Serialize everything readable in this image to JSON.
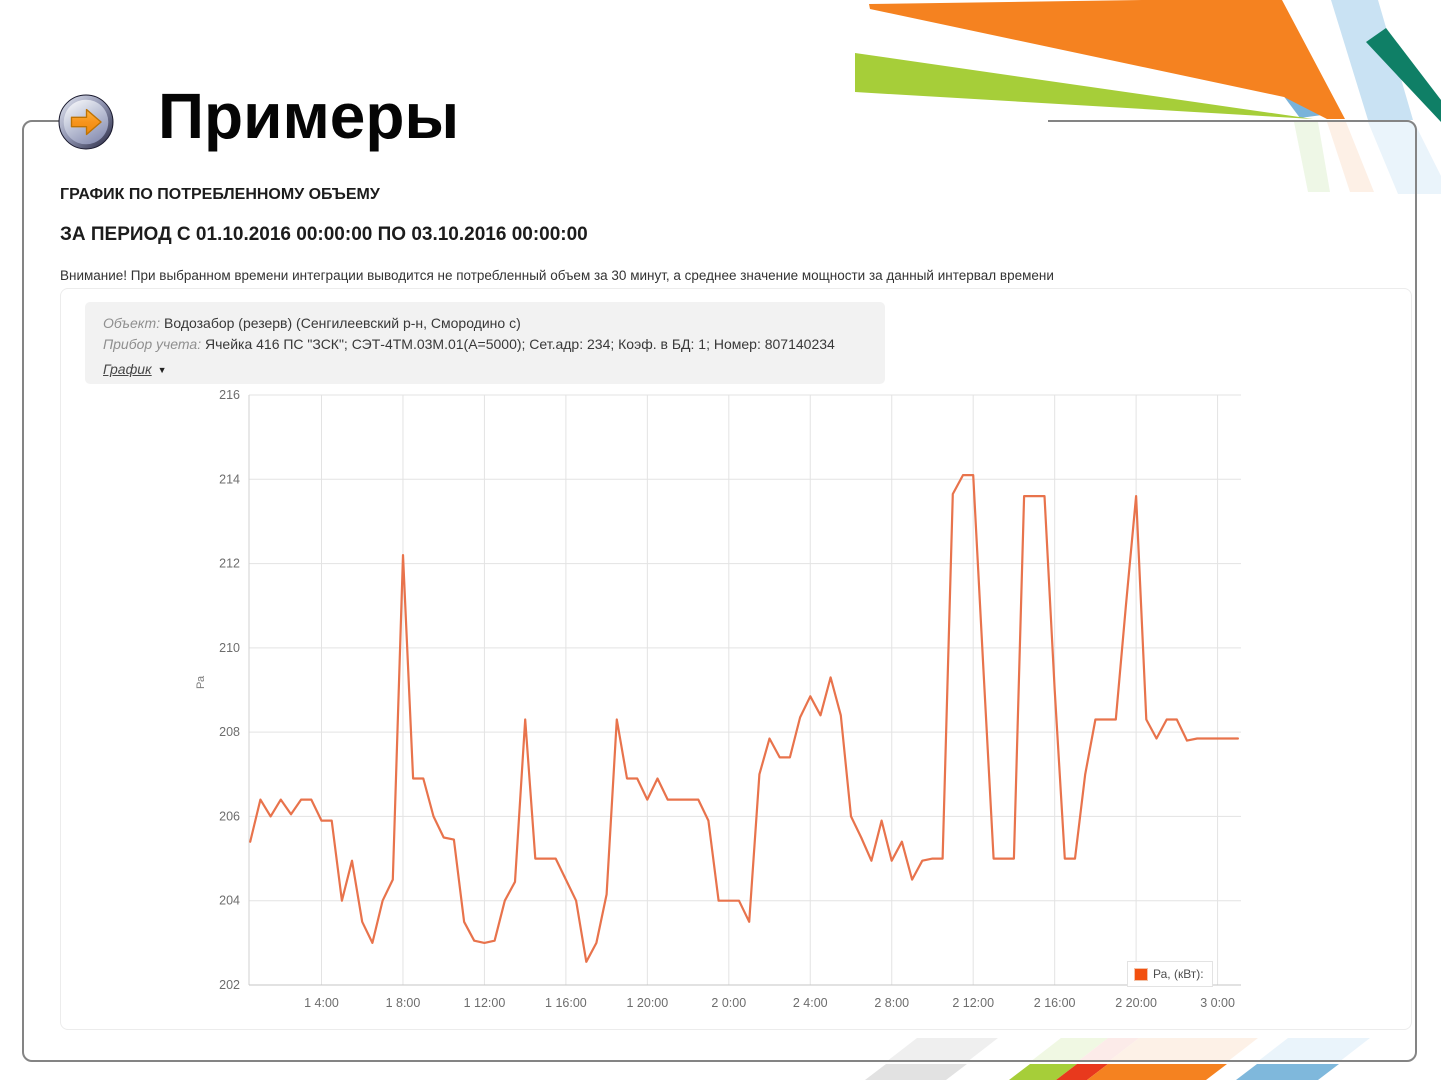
{
  "slide": {
    "title": "Примеры"
  },
  "report": {
    "heading": "ГРАФИК ПО ПОТРЕБЛЕННОМУ ОБЪЕМУ",
    "period": "ЗА ПЕРИОД С 01.10.2016 00:00:00 ПО 03.10.2016 00:00:00",
    "warning": "Внимание! При выбранном времени интеграции выводится не потребленный объем за 30 минут, а среднее значение мощности за данный интервал времени"
  },
  "meter_info": {
    "object_label": "Объект:",
    "object_value": "Водозабор (резерв) (Сенгилеевский р-н, Смородино с)",
    "device_label": "Прибор учета:",
    "device_value": "Ячейка 416 ПС \"ЗСК\"; СЭТ-4ТМ.03М.01(А=5000); Сет.адр: 234; Коэф. в БД: 1; Номер: 807140234",
    "view_selector": "График"
  },
  "chart_data": {
    "type": "line",
    "title": "",
    "xlabel": "",
    "ylabel": "Ра",
    "ylim": [
      202,
      216
    ],
    "yticks": [
      202,
      204,
      206,
      208,
      210,
      212,
      214,
      216
    ],
    "xticks": [
      {
        "t": 4,
        "label": "1 4:00"
      },
      {
        "t": 8,
        "label": "1 8:00"
      },
      {
        "t": 12,
        "label": "1 12:00"
      },
      {
        "t": 16,
        "label": "1 16:00"
      },
      {
        "t": 20,
        "label": "1 20:00"
      },
      {
        "t": 24,
        "label": "2 0:00"
      },
      {
        "t": 28,
        "label": "2 4:00"
      },
      {
        "t": 32,
        "label": "2 8:00"
      },
      {
        "t": 36,
        "label": "2 12:00"
      },
      {
        "t": 40,
        "label": "2 16:00"
      },
      {
        "t": 44,
        "label": "2 20:00"
      },
      {
        "t": 48,
        "label": "3 0:00"
      }
    ],
    "grid": true,
    "legend": {
      "label": "Ра, (кВт):",
      "swatch_color": "#f2500f",
      "position": "bottom-right"
    },
    "series": [
      {
        "name": "Ра, (кВт):",
        "color": "#e8734c",
        "x_unit": "hours from 01.10.2016 00:00",
        "points": [
          [
            0.5,
            205.4
          ],
          [
            1,
            206.4
          ],
          [
            1.5,
            206
          ],
          [
            2,
            206.4
          ],
          [
            2.5,
            206.05
          ],
          [
            3,
            206.4
          ],
          [
            3.5,
            206.4
          ],
          [
            4,
            205.9
          ],
          [
            4.5,
            205.9
          ],
          [
            5,
            204
          ],
          [
            5.5,
            204.95
          ],
          [
            6,
            203.5
          ],
          [
            6.5,
            203
          ],
          [
            7,
            204
          ],
          [
            7.5,
            204.5
          ],
          [
            8,
            212.2
          ],
          [
            8.5,
            206.9
          ],
          [
            9,
            206.9
          ],
          [
            9.5,
            206
          ],
          [
            10,
            205.5
          ],
          [
            10.5,
            205.45
          ],
          [
            11,
            203.5
          ],
          [
            11.5,
            203.05
          ],
          [
            12,
            203
          ],
          [
            12.5,
            203.05
          ],
          [
            13,
            204
          ],
          [
            13.5,
            204.45
          ],
          [
            14,
            208.3
          ],
          [
            14.5,
            205
          ],
          [
            15,
            205
          ],
          [
            15.5,
            205
          ],
          [
            16,
            204.5
          ],
          [
            16.5,
            204
          ],
          [
            17,
            202.55
          ],
          [
            17.5,
            203
          ],
          [
            18,
            204.15
          ],
          [
            18.5,
            208.3
          ],
          [
            19,
            206.9
          ],
          [
            19.5,
            206.9
          ],
          [
            20,
            206.4
          ],
          [
            20.5,
            206.9
          ],
          [
            21,
            206.4
          ],
          [
            21.5,
            206.4
          ],
          [
            22,
            206.4
          ],
          [
            22.5,
            206.4
          ],
          [
            23,
            205.9
          ],
          [
            23.5,
            204
          ],
          [
            24,
            204
          ],
          [
            24.5,
            204
          ],
          [
            25,
            203.5
          ],
          [
            25.5,
            207
          ],
          [
            26,
            207.85
          ],
          [
            26.5,
            207.4
          ],
          [
            27,
            207.4
          ],
          [
            27.5,
            208.35
          ],
          [
            28,
            208.85
          ],
          [
            28.5,
            208.4
          ],
          [
            29,
            209.3
          ],
          [
            29.5,
            208.4
          ],
          [
            30,
            206
          ],
          [
            30.5,
            205.5
          ],
          [
            31,
            204.95
          ],
          [
            31.5,
            205.9
          ],
          [
            32,
            204.95
          ],
          [
            32.5,
            205.4
          ],
          [
            33,
            204.5
          ],
          [
            33.5,
            204.95
          ],
          [
            34,
            205
          ],
          [
            34.5,
            205
          ],
          [
            35,
            213.65
          ],
          [
            35.5,
            214.1
          ],
          [
            36,
            214.1
          ],
          [
            36.5,
            209.5
          ],
          [
            37,
            205
          ],
          [
            37.5,
            205
          ],
          [
            38,
            205
          ],
          [
            38.5,
            213.6
          ],
          [
            39,
            213.6
          ],
          [
            39.5,
            213.6
          ],
          [
            40,
            209
          ],
          [
            40.5,
            205
          ],
          [
            41,
            205
          ],
          [
            41.5,
            207
          ],
          [
            42,
            208.3
          ],
          [
            42.5,
            208.3
          ],
          [
            43,
            208.3
          ],
          [
            43.5,
            211
          ],
          [
            44,
            213.6
          ],
          [
            44.5,
            208.3
          ],
          [
            45,
            207.85
          ],
          [
            45.5,
            208.3
          ],
          [
            46,
            208.3
          ],
          [
            46.5,
            207.8
          ],
          [
            47,
            207.85
          ],
          [
            47.5,
            207.85
          ],
          [
            48,
            207.85
          ],
          [
            48.5,
            207.85
          ],
          [
            49,
            207.85
          ]
        ]
      }
    ]
  },
  "colors": {
    "line": "#e8734c",
    "legend_swatch": "#f2500f",
    "frame_border": "#848484",
    "stripe_orange": "#f58220",
    "stripe_green": "#a6ce39",
    "stripe_red": "#e8391d",
    "stripe_blue": "#7fb8dc",
    "stripe_teal": "#0f7f66",
    "info_box_bg": "#f2f2f2"
  }
}
